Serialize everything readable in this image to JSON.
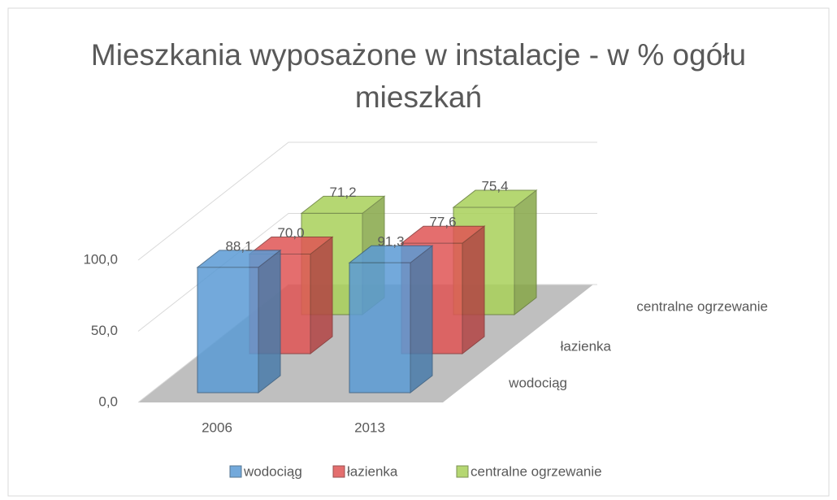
{
  "chart_data": {
    "type": "bar3d",
    "title": "Mieszkania wyposażone w instalacje - w % ogółu mieszkań",
    "categories": [
      "2006",
      "2013"
    ],
    "series": [
      {
        "name": "wodociąg",
        "color": "#5b9bd5",
        "values": [
          88.1,
          91.3
        ],
        "value_labels": [
          "88,1",
          "91,3"
        ]
      },
      {
        "name": "łazienka",
        "color": "#e05555",
        "values": [
          70.0,
          77.6
        ],
        "value_labels": [
          "70,0",
          "77,6"
        ]
      },
      {
        "name": "centralne ogrzewanie",
        "color": "#a9d15a",
        "values": [
          71.2,
          75.4
        ],
        "value_labels": [
          "71,2",
          "75,4"
        ]
      }
    ],
    "ylim": [
      0,
      100
    ],
    "yticks": [
      {
        "value": 0,
        "label": "0,0"
      },
      {
        "value": 50,
        "label": "50,0"
      },
      {
        "value": 100,
        "label": "100,0"
      }
    ],
    "grid": true,
    "legend": "bottom"
  }
}
